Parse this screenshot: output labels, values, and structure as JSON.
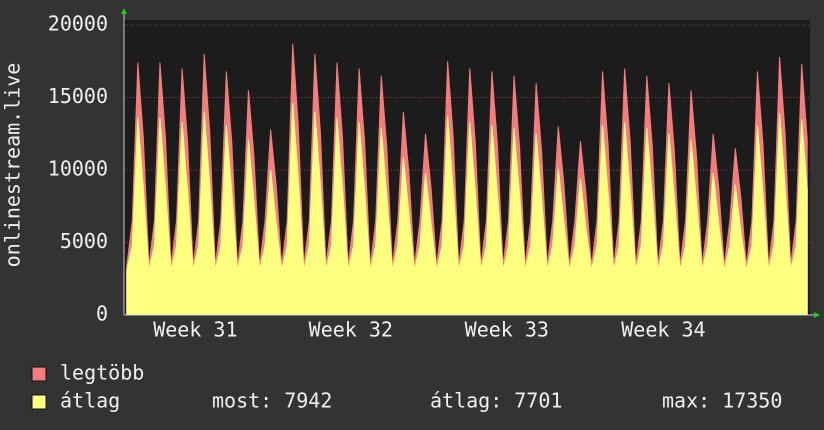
{
  "chart_data": {
    "type": "area",
    "ylabel": "onlinestream.live",
    "ylim": [
      0,
      20000
    ],
    "yticks": [
      0,
      5000,
      10000,
      15000,
      20000
    ],
    "xlim": [
      -0.5,
      123.5
    ],
    "xticks": [
      {
        "value": 12.4,
        "label": "Week 31"
      },
      {
        "value": 40.5,
        "label": "Week 32"
      },
      {
        "value": 68.7,
        "label": "Week 33"
      },
      {
        "value": 97.0,
        "label": "Week 34"
      }
    ],
    "grid": true,
    "series": [
      {
        "name": "legtöbb",
        "color": "#f47c7c",
        "values": [
          3400,
          6500,
          17400,
          12200,
          3400,
          6500,
          17400,
          12200,
          3400,
          6500,
          17000,
          11900,
          3400,
          6500,
          18000,
          12600,
          3400,
          6500,
          16800,
          11800,
          3400,
          6500,
          15500,
          10900,
          3400,
          6500,
          12800,
          9000,
          3400,
          6500,
          18700,
          13100,
          3400,
          6500,
          18000,
          12600,
          3400,
          6500,
          17400,
          12200,
          3400,
          6500,
          17000,
          11900,
          3400,
          6500,
          16500,
          11600,
          3400,
          6500,
          14000,
          9800,
          3400,
          6500,
          12500,
          8800,
          3400,
          6500,
          17500,
          12300,
          3400,
          6500,
          17000,
          11900,
          3400,
          6500,
          16800,
          11800,
          3400,
          6500,
          16500,
          11600,
          3400,
          6500,
          16000,
          11200,
          3400,
          6500,
          13000,
          9100,
          3400,
          6500,
          12000,
          8400,
          3400,
          6500,
          16800,
          11800,
          3400,
          6500,
          17000,
          11900,
          3400,
          6500,
          16500,
          11600,
          3400,
          6500,
          16000,
          11200,
          3400,
          6500,
          15500,
          10900,
          3400,
          6500,
          12500,
          8800,
          3400,
          6500,
          11500,
          8100,
          3400,
          6500,
          16800,
          11800,
          3400,
          6500,
          17800,
          12500,
          3400,
          6500,
          17300,
          12100
        ]
      },
      {
        "name": "átlag",
        "color": "#ffff80",
        "values": [
          3100,
          4800,
          13600,
          8700,
          3100,
          4800,
          13600,
          8700,
          3100,
          4800,
          13300,
          8500,
          3100,
          4800,
          14000,
          9000,
          3100,
          4800,
          13100,
          8400,
          3100,
          4800,
          12100,
          7800,
          3100,
          4800,
          10000,
          6400,
          3100,
          4800,
          14600,
          9400,
          3100,
          4800,
          14000,
          9000,
          3100,
          4800,
          13600,
          8700,
          3100,
          4800,
          13300,
          8500,
          3100,
          4800,
          12900,
          8300,
          3100,
          4800,
          10900,
          7000,
          3100,
          4800,
          9800,
          6300,
          3100,
          4800,
          13700,
          8800,
          3100,
          4800,
          13300,
          8500,
          3100,
          4800,
          13100,
          8400,
          3100,
          4800,
          12900,
          8300,
          3100,
          4800,
          12500,
          8000,
          3100,
          4800,
          10100,
          6500,
          3100,
          4800,
          9400,
          6000,
          3100,
          4800,
          13100,
          8400,
          3100,
          4800,
          13300,
          8500,
          3100,
          4800,
          12900,
          8300,
          3100,
          4800,
          12500,
          8000,
          3100,
          4800,
          12100,
          7800,
          3100,
          4800,
          9800,
          6300,
          3100,
          4800,
          9000,
          5800,
          3100,
          4800,
          13100,
          8400,
          3100,
          4800,
          13900,
          8900,
          3100,
          4800,
          13500,
          8700
        ]
      }
    ],
    "stats": [
      {
        "label": "most:",
        "value": 7942
      },
      {
        "label": "átlag:",
        "value": 7701
      },
      {
        "label": "max:",
        "value": 17350
      }
    ]
  }
}
